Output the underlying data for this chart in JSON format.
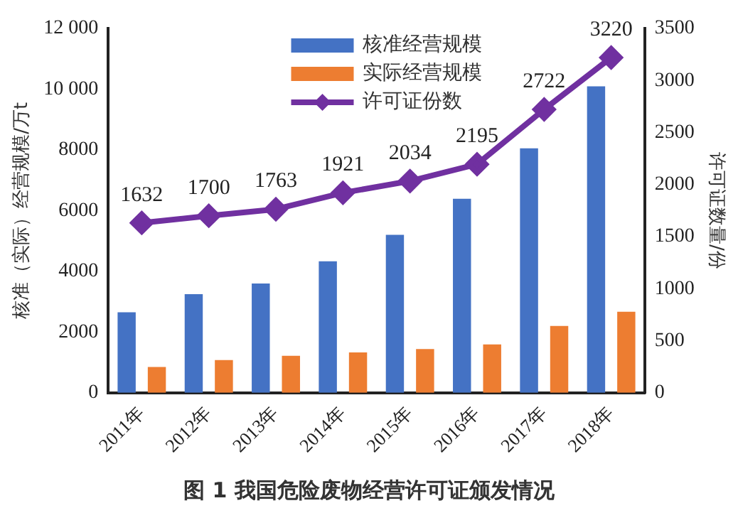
{
  "chart_data": {
    "type": "bar",
    "title": "图 1 我国危险废物经营许可证颁发情况",
    "ylabel": "核准（实际）经营规模/万t",
    "y2label": "许可证数量/份",
    "categories": [
      "2011年",
      "2012年",
      "2013年",
      "2014年",
      "2015年",
      "2016年",
      "2017年",
      "2018年"
    ],
    "series": [
      {
        "name": "核准经营规模",
        "color": "#4472c4",
        "values": [
          2650,
          3250,
          3600,
          4330,
          5200,
          6390,
          8050,
          10090
        ]
      },
      {
        "name": "实际经营规模",
        "color": "#ed7d31",
        "values": [
          850,
          1080,
          1220,
          1330,
          1440,
          1590,
          2200,
          2670
        ]
      },
      {
        "name": "许可证份数",
        "type": "line",
        "axis": "y2",
        "color": "#7030a0",
        "values": [
          1632,
          1700,
          1763,
          1921,
          2034,
          2195,
          2722,
          3220
        ],
        "value_labels": [
          "1632",
          "1700",
          "1763",
          "1921",
          "2034",
          "2195",
          "2722",
          "3220"
        ]
      }
    ],
    "ylim": [
      0,
      12000
    ],
    "yticks": [
      0,
      2000,
      4000,
      6000,
      8000,
      {
        "value": 10000,
        "label": "10 000"
      },
      {
        "value": 12000,
        "label": "12 000"
      }
    ],
    "y2lim": [
      0,
      3500
    ],
    "y2ticks": [
      0,
      500,
      1000,
      1500,
      2000,
      2500,
      3000,
      3500
    ],
    "grid": false,
    "legend": "top",
    "marker": "diamond",
    "line_style": "solid"
  }
}
